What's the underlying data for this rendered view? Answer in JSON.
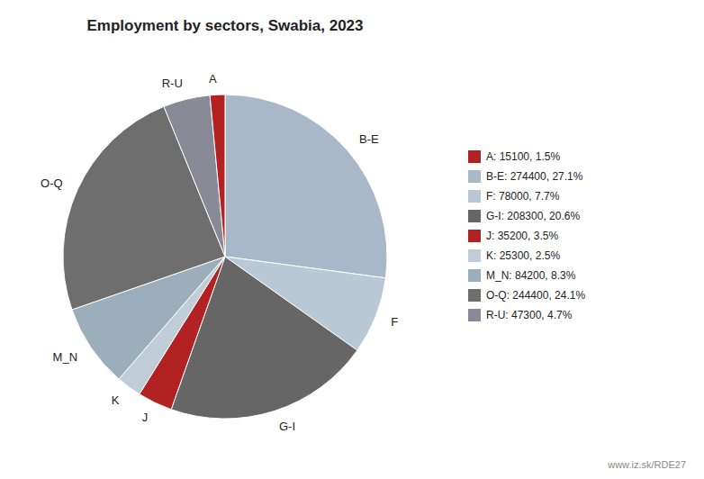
{
  "chart_data": {
    "type": "pie",
    "title": "Employment by sectors, Swabia, 2023",
    "categories": [
      "B-E",
      "F",
      "G-I",
      "J",
      "K",
      "M_N",
      "O-Q",
      "R-U",
      "A"
    ],
    "values": [
      274400,
      78000,
      208300,
      35200,
      25300,
      84200,
      244400,
      47300,
      15100
    ],
    "colors": [
      "#a8b8c8",
      "#b8c8d4",
      "#666666",
      "#b22222",
      "#c0cdd6",
      "#9aaebb",
      "#6e6e6e",
      "#8a8a96",
      "#b22222"
    ],
    "legend": "right",
    "legend_labels": [
      "A: 15100, 1.5%",
      "B-E: 274400, 27.1%",
      "F: 78000, 7.7%",
      "G-I: 208300, 20.6%",
      "J: 35200, 3.5%",
      "K: 25300, 2.5%",
      "M_N: 84200, 8.3%",
      "O-Q: 244400, 24.1%",
      "R-U: 47300, 4.7%"
    ],
    "legend_colors": [
      "#b22222",
      "#a8b8c8",
      "#b8c8d4",
      "#666666",
      "#b22222",
      "#c0cdd6",
      "#9aaebb",
      "#6e6e6e",
      "#8a8a96"
    ],
    "annotations": [
      "www.iz.sk/RDE27"
    ]
  }
}
